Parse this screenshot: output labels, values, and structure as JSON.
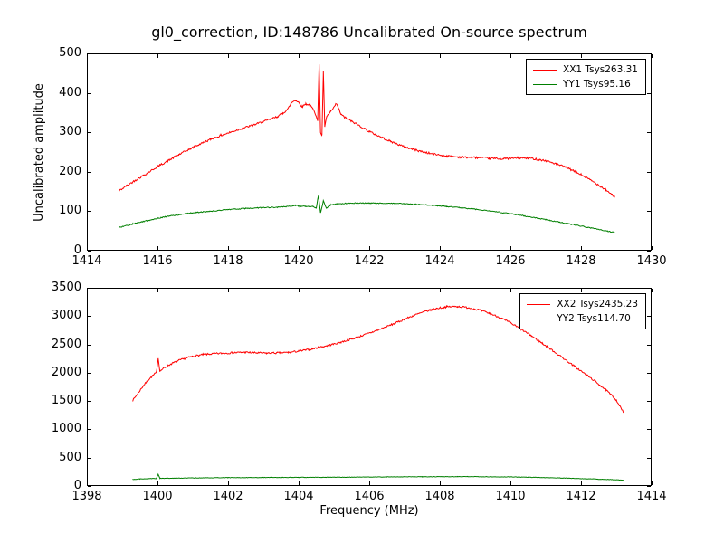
{
  "figure": {
    "title": "gl0_correction, ID:148786 Uncalibrated On-source spectrum",
    "ylabel": "Uncalibrated amplitude",
    "xlabel": "Frequency (MHz)"
  },
  "colors": {
    "red": "#ff0000",
    "green": "#007f00",
    "frame": "#000000"
  },
  "chart_data": [
    {
      "type": "line",
      "title": "gl0_correction, ID:148786 Uncalibrated On-source spectrum",
      "ylabel": "Uncalibrated amplitude",
      "xlabel": "",
      "xlim": [
        1414,
        1430
      ],
      "ylim": [
        0,
        500
      ],
      "xticks": [
        1414,
        1416,
        1418,
        1420,
        1422,
        1424,
        1426,
        1428,
        1430
      ],
      "yticks": [
        0,
        100,
        200,
        300,
        400,
        500
      ],
      "grid": false,
      "legend_position": "top-right",
      "series": [
        {
          "name": "XX1 Tsys263.31",
          "color": "#ff0000",
          "noise": 2.5,
          "points": [
            [
              1414.92,
              152
            ],
            [
              1415.1,
              163
            ],
            [
              1415.4,
              180
            ],
            [
              1415.7,
              196
            ],
            [
              1416.0,
              213
            ],
            [
              1416.3,
              228
            ],
            [
              1416.6,
              243
            ],
            [
              1416.9,
              257
            ],
            [
              1417.2,
              270
            ],
            [
              1417.5,
              282
            ],
            [
              1417.8,
              292
            ],
            [
              1418.1,
              301
            ],
            [
              1418.4,
              310
            ],
            [
              1418.7,
              318
            ],
            [
              1419.0,
              327
            ],
            [
              1419.2,
              333
            ],
            [
              1419.4,
              340
            ],
            [
              1419.55,
              348
            ],
            [
              1419.7,
              360
            ],
            [
              1419.8,
              375
            ],
            [
              1419.9,
              382
            ],
            [
              1420.0,
              376
            ],
            [
              1420.1,
              365
            ],
            [
              1420.2,
              372
            ],
            [
              1420.3,
              370
            ],
            [
              1420.4,
              360
            ],
            [
              1420.5,
              342
            ],
            [
              1420.54,
              330
            ],
            [
              1420.58,
              472
            ],
            [
              1420.62,
              300
            ],
            [
              1420.66,
              292
            ],
            [
              1420.7,
              452
            ],
            [
              1420.74,
              315
            ],
            [
              1420.8,
              340
            ],
            [
              1420.9,
              352
            ],
            [
              1421.0,
              362
            ],
            [
              1421.05,
              372
            ],
            [
              1421.1,
              368
            ],
            [
              1421.2,
              345
            ],
            [
              1421.3,
              338
            ],
            [
              1421.5,
              328
            ],
            [
              1421.7,
              318
            ],
            [
              1422.0,
              302
            ],
            [
              1422.3,
              289
            ],
            [
              1422.6,
              277
            ],
            [
              1423.0,
              263
            ],
            [
              1423.4,
              253
            ],
            [
              1423.8,
              245
            ],
            [
              1424.2,
              240
            ],
            [
              1424.6,
              237
            ],
            [
              1425.0,
              236
            ],
            [
              1425.4,
              234
            ],
            [
              1425.8,
              233
            ],
            [
              1426.2,
              235
            ],
            [
              1426.6,
              234
            ],
            [
              1427.0,
              228
            ],
            [
              1427.3,
              220
            ],
            [
              1427.6,
              210
            ],
            [
              1428.0,
              193
            ],
            [
              1428.4,
              172
            ],
            [
              1428.7,
              155
            ],
            [
              1428.95,
              137
            ]
          ]
        },
        {
          "name": "YY1 Tsys95.16",
          "color": "#007f00",
          "noise": 1.2,
          "points": [
            [
              1414.92,
              59
            ],
            [
              1415.3,
              68
            ],
            [
              1415.7,
              76
            ],
            [
              1416.1,
              84
            ],
            [
              1416.5,
              90
            ],
            [
              1417.0,
              96
            ],
            [
              1417.5,
              100
            ],
            [
              1418.0,
              104
            ],
            [
              1418.5,
              107
            ],
            [
              1419.0,
              109
            ],
            [
              1419.4,
              110
            ],
            [
              1419.7,
              112
            ],
            [
              1419.9,
              115
            ],
            [
              1420.0,
              113
            ],
            [
              1420.2,
              112
            ],
            [
              1420.4,
              112
            ],
            [
              1420.5,
              108
            ],
            [
              1420.56,
              140
            ],
            [
              1420.62,
              96
            ],
            [
              1420.7,
              126
            ],
            [
              1420.78,
              108
            ],
            [
              1420.9,
              116
            ],
            [
              1421.1,
              119
            ],
            [
              1421.4,
              120
            ],
            [
              1421.8,
              121
            ],
            [
              1422.2,
              120
            ],
            [
              1422.6,
              120
            ],
            [
              1423.0,
              119
            ],
            [
              1423.4,
              117
            ],
            [
              1423.8,
              115
            ],
            [
              1424.2,
              112
            ],
            [
              1424.6,
              109
            ],
            [
              1425.0,
              105
            ],
            [
              1425.4,
              101
            ],
            [
              1425.8,
              96
            ],
            [
              1426.2,
              91
            ],
            [
              1426.6,
              85
            ],
            [
              1427.0,
              79
            ],
            [
              1427.4,
              72
            ],
            [
              1427.8,
              66
            ],
            [
              1428.2,
              59
            ],
            [
              1428.6,
              52
            ],
            [
              1428.95,
              46
            ]
          ]
        }
      ]
    },
    {
      "type": "line",
      "title": "",
      "ylabel": "",
      "xlabel": "Frequency (MHz)",
      "xlim": [
        1398,
        1414
      ],
      "ylim": [
        0,
        3500
      ],
      "xticks": [
        1398,
        1400,
        1402,
        1404,
        1406,
        1408,
        1410,
        1412,
        1414
      ],
      "yticks": [
        0,
        500,
        1000,
        1500,
        2000,
        2500,
        3000,
        3500
      ],
      "grid": false,
      "legend_position": "top-right",
      "series": [
        {
          "name": "XX2 Tsys2435.23",
          "color": "#ff0000",
          "noise": 16,
          "points": [
            [
              1399.3,
              1510
            ],
            [
              1399.45,
              1640
            ],
            [
              1399.6,
              1770
            ],
            [
              1399.75,
              1880
            ],
            [
              1399.9,
              1965
            ],
            [
              1399.97,
              2005
            ],
            [
              1400.02,
              2260
            ],
            [
              1400.07,
              2030
            ],
            [
              1400.2,
              2090
            ],
            [
              1400.4,
              2160
            ],
            [
              1400.6,
              2215
            ],
            [
              1400.8,
              2255
            ],
            [
              1401.0,
              2290
            ],
            [
              1401.3,
              2320
            ],
            [
              1401.6,
              2335
            ],
            [
              1401.9,
              2345
            ],
            [
              1402.2,
              2355
            ],
            [
              1402.5,
              2360
            ],
            [
              1402.8,
              2350
            ],
            [
              1403.1,
              2345
            ],
            [
              1403.4,
              2350
            ],
            [
              1403.7,
              2358
            ],
            [
              1404.0,
              2380
            ],
            [
              1404.3,
              2410
            ],
            [
              1404.6,
              2450
            ],
            [
              1404.9,
              2490
            ],
            [
              1405.2,
              2540
            ],
            [
              1405.5,
              2595
            ],
            [
              1405.8,
              2655
            ],
            [
              1406.1,
              2720
            ],
            [
              1406.4,
              2790
            ],
            [
              1406.7,
              2865
            ],
            [
              1407.0,
              2945
            ],
            [
              1407.3,
              3020
            ],
            [
              1407.6,
              3085
            ],
            [
              1407.9,
              3135
            ],
            [
              1408.2,
              3165
            ],
            [
              1408.5,
              3170
            ],
            [
              1408.8,
              3150
            ],
            [
              1409.1,
              3110
            ],
            [
              1409.4,
              3050
            ],
            [
              1409.7,
              2975
            ],
            [
              1410.0,
              2880
            ],
            [
              1410.3,
              2770
            ],
            [
              1410.6,
              2650
            ],
            [
              1410.9,
              2520
            ],
            [
              1411.2,
              2390
            ],
            [
              1411.5,
              2255
            ],
            [
              1411.8,
              2120
            ],
            [
              1412.1,
              1985
            ],
            [
              1412.4,
              1850
            ],
            [
              1412.7,
              1700
            ],
            [
              1413.0,
              1520
            ],
            [
              1413.2,
              1300
            ]
          ]
        },
        {
          "name": "YY2 Tsys114.70",
          "color": "#007f00",
          "noise": 4,
          "points": [
            [
              1399.3,
              115
            ],
            [
              1399.5,
              125
            ],
            [
              1399.8,
              130
            ],
            [
              1399.97,
              133
            ],
            [
              1400.02,
              210
            ],
            [
              1400.07,
              134
            ],
            [
              1400.5,
              138
            ],
            [
              1401.0,
              142
            ],
            [
              1401.5,
              145
            ],
            [
              1402.0,
              147
            ],
            [
              1402.5,
              148
            ],
            [
              1403.0,
              150
            ],
            [
              1403.5,
              151
            ],
            [
              1404.0,
              152
            ],
            [
              1404.5,
              153
            ],
            [
              1405.0,
              154
            ],
            [
              1405.5,
              156
            ],
            [
              1406.0,
              158
            ],
            [
              1406.5,
              160
            ],
            [
              1407.0,
              162
            ],
            [
              1407.5,
              163
            ],
            [
              1408.0,
              164
            ],
            [
              1408.5,
              165
            ],
            [
              1409.0,
              165
            ],
            [
              1409.5,
              163
            ],
            [
              1410.0,
              160
            ],
            [
              1410.5,
              155
            ],
            [
              1411.0,
              148
            ],
            [
              1411.5,
              140
            ],
            [
              1412.0,
              130
            ],
            [
              1412.5,
              120
            ],
            [
              1413.0,
              110
            ],
            [
              1413.2,
              103
            ]
          ]
        }
      ]
    }
  ]
}
